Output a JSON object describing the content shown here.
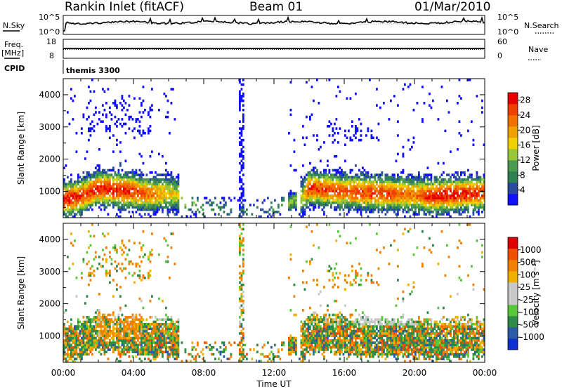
{
  "header": {
    "site": "Rankin Inlet (fitACF)",
    "beam": "Beam 01",
    "date": "01/Mar/2010"
  },
  "top_panels": {
    "nsky_label": "N.Sky",
    "nsky_ticks": [
      "10^5",
      "10^0"
    ],
    "nsearch_label": "N.Search",
    "nsearch_ticks": [
      "10^5",
      "10^0"
    ],
    "freq_label": "Freq.",
    "freq_unit": "[MHz]",
    "freq_ticks": [
      "18",
      "8"
    ],
    "nave_label": "Nave",
    "nave_ticks": [
      "60",
      "0"
    ],
    "cpid_label": "CPID",
    "cpid_value": "themis 3300"
  },
  "colors": {
    "power_scale": [
      "#1010ff",
      "#2a4aa0",
      "#2e8050",
      "#4a9a50",
      "#98c838",
      "#f0d000",
      "#f0a000",
      "#f07000",
      "#f04000",
      "#e80000"
    ],
    "velocity_scale": [
      "#e00000",
      "#f05000",
      "#f08000",
      "#f0b000",
      "#c8c8c8",
      "#c8c8c8",
      "#58c838",
      "#2f8a4a",
      "#2a5aa8",
      "#1030d0"
    ]
  },
  "chart_data": [
    {
      "type": "heatmap",
      "name": "power",
      "xlabel": "",
      "ylabel": "Slant Range [km]",
      "x_ticks": [
        "00:00",
        "04:00",
        "08:00",
        "12:00",
        "16:00",
        "20:00",
        "00:00"
      ],
      "xlim": [
        0,
        24
      ],
      "ylim": [
        180,
        4500
      ],
      "y_ticks": [
        "1000",
        "2000",
        "3000",
        "4000"
      ],
      "colorbar": {
        "label": "Power [dB]",
        "range": [
          0,
          30
        ],
        "ticks": [
          "28",
          "24",
          "20",
          "16",
          "12",
          "8",
          "4"
        ]
      },
      "series": [
        {
          "hours": [
            0,
            1,
            2,
            3,
            4,
            5,
            6,
            6.5,
            8,
            10,
            12,
            13.6,
            14,
            16,
            18,
            20,
            21,
            22,
            24
          ],
          "echo_center_km": [
            750,
            850,
            1100,
            1050,
            1000,
            900,
            950,
            900,
            500,
            350,
            500,
            800,
            1100,
            1000,
            950,
            900,
            850,
            900,
            950
          ],
          "peak_power_db": [
            28,
            26,
            27,
            28,
            26,
            22,
            18,
            16,
            10,
            6,
            8,
            14,
            26,
            24,
            26,
            22,
            28,
            28,
            26
          ]
        }
      ]
    },
    {
      "type": "heatmap",
      "name": "velocity",
      "xlabel": "Time UT",
      "ylabel": "Slant Range [km]",
      "x_ticks": [
        "00:00",
        "04:00",
        "08:00",
        "12:00",
        "16:00",
        "20:00",
        "00:00"
      ],
      "xlim": [
        0,
        24
      ],
      "ylim": [
        180,
        4500
      ],
      "y_ticks": [
        "1000",
        "2000",
        "3000",
        "4000"
      ],
      "colorbar": {
        "label": "Velocity [m s⁻¹]",
        "ticks": [
          "1000",
          "500",
          "100",
          "25",
          "-25",
          "-100",
          "-500",
          "-1000"
        ]
      }
    }
  ]
}
